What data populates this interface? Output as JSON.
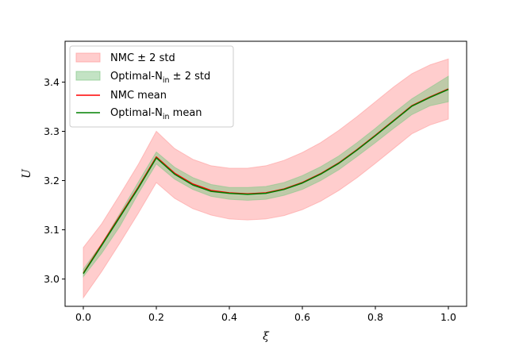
{
  "chart_data": {
    "type": "line",
    "title": "",
    "xlabel": "ξ",
    "ylabel": "U",
    "xlim": [
      -0.05,
      1.05
    ],
    "ylim": [
      2.9446,
      3.4829
    ],
    "x_ticks": [
      0.0,
      0.2,
      0.4,
      0.6,
      0.8,
      1.0
    ],
    "x_tick_labels": [
      "0.0",
      "0.2",
      "0.4",
      "0.6",
      "0.8",
      "1.0"
    ],
    "y_ticks": [
      3.0,
      3.1,
      3.2,
      3.3,
      3.4
    ],
    "y_tick_labels": [
      "3.0",
      "3.1",
      "3.2",
      "3.3",
      "3.4"
    ],
    "legend_position": "top-left",
    "colors": {
      "nmc_band": "#ff9c9c",
      "opt_band": "#88c88a",
      "nmc_mean": "#ff0000",
      "opt_mean": "#008000"
    },
    "series": [
      {
        "name": "NMC ± 2 std",
        "kind": "band",
        "x": [
          0.0,
          0.05,
          0.1,
          0.15,
          0.2,
          0.25,
          0.3,
          0.35,
          0.4,
          0.45,
          0.5,
          0.55,
          0.6,
          0.65,
          0.7,
          0.75,
          0.8,
          0.85,
          0.9,
          0.95,
          1.0
        ],
        "lower": [
          2.962,
          3.015,
          3.073,
          3.133,
          3.196,
          3.164,
          3.143,
          3.13,
          3.122,
          3.12,
          3.122,
          3.129,
          3.141,
          3.158,
          3.18,
          3.206,
          3.235,
          3.265,
          3.295,
          3.313,
          3.325
        ],
        "upper": [
          3.064,
          3.112,
          3.171,
          3.232,
          3.3,
          3.265,
          3.243,
          3.23,
          3.225,
          3.225,
          3.23,
          3.241,
          3.257,
          3.277,
          3.302,
          3.33,
          3.36,
          3.39,
          3.417,
          3.435,
          3.447
        ]
      },
      {
        "name": "Optimal-N_in ± 2 std",
        "kind": "band",
        "x": [
          0.0,
          0.05,
          0.1,
          0.15,
          0.2,
          0.25,
          0.3,
          0.35,
          0.4,
          0.45,
          0.5,
          0.55,
          0.6,
          0.65,
          0.7,
          0.75,
          0.8,
          0.85,
          0.9,
          0.95,
          1.0
        ],
        "lower": [
          3.005,
          3.052,
          3.107,
          3.173,
          3.234,
          3.203,
          3.182,
          3.168,
          3.162,
          3.16,
          3.162,
          3.17,
          3.182,
          3.2,
          3.222,
          3.249,
          3.277,
          3.306,
          3.334,
          3.352,
          3.36
        ],
        "upper": [
          3.02,
          3.071,
          3.133,
          3.196,
          3.258,
          3.227,
          3.206,
          3.192,
          3.186,
          3.186,
          3.188,
          3.196,
          3.21,
          3.228,
          3.25,
          3.277,
          3.306,
          3.337,
          3.366,
          3.389,
          3.412
        ]
      },
      {
        "name": "NMC mean",
        "kind": "line",
        "x": [
          0.0,
          0.05,
          0.1,
          0.15,
          0.2,
          0.25,
          0.3,
          0.35,
          0.4,
          0.45,
          0.5,
          0.55,
          0.6,
          0.65,
          0.7,
          0.75,
          0.8,
          0.85,
          0.9,
          0.95,
          1.0
        ],
        "values": [
          3.012,
          3.07,
          3.128,
          3.186,
          3.248,
          3.215,
          3.193,
          3.18,
          3.175,
          3.173,
          3.175,
          3.183,
          3.196,
          3.214,
          3.236,
          3.263,
          3.292,
          3.322,
          3.352,
          3.37,
          3.386
        ]
      },
      {
        "name": "Optimal-N_in mean",
        "kind": "line",
        "x": [
          0.0,
          0.05,
          0.1,
          0.15,
          0.2,
          0.25,
          0.3,
          0.35,
          0.4,
          0.45,
          0.5,
          0.55,
          0.6,
          0.65,
          0.7,
          0.75,
          0.8,
          0.85,
          0.9,
          0.95,
          1.0
        ],
        "values": [
          3.011,
          3.068,
          3.126,
          3.184,
          3.246,
          3.213,
          3.191,
          3.178,
          3.174,
          3.172,
          3.174,
          3.182,
          3.195,
          3.213,
          3.235,
          3.262,
          3.291,
          3.321,
          3.351,
          3.369,
          3.385
        ]
      }
    ],
    "legend": [
      {
        "key": "nmc_band",
        "kind": "band",
        "label": "NMC ± 2 std"
      },
      {
        "key": "opt_band",
        "kind": "band",
        "label": "Optimal-N",
        "sub": "in",
        "suffix": " ± 2 std"
      },
      {
        "key": "nmc_mean",
        "kind": "line",
        "label": "NMC mean"
      },
      {
        "key": "opt_mean",
        "kind": "line",
        "label": "Optimal-N",
        "sub": "in",
        "suffix": " mean"
      }
    ]
  }
}
